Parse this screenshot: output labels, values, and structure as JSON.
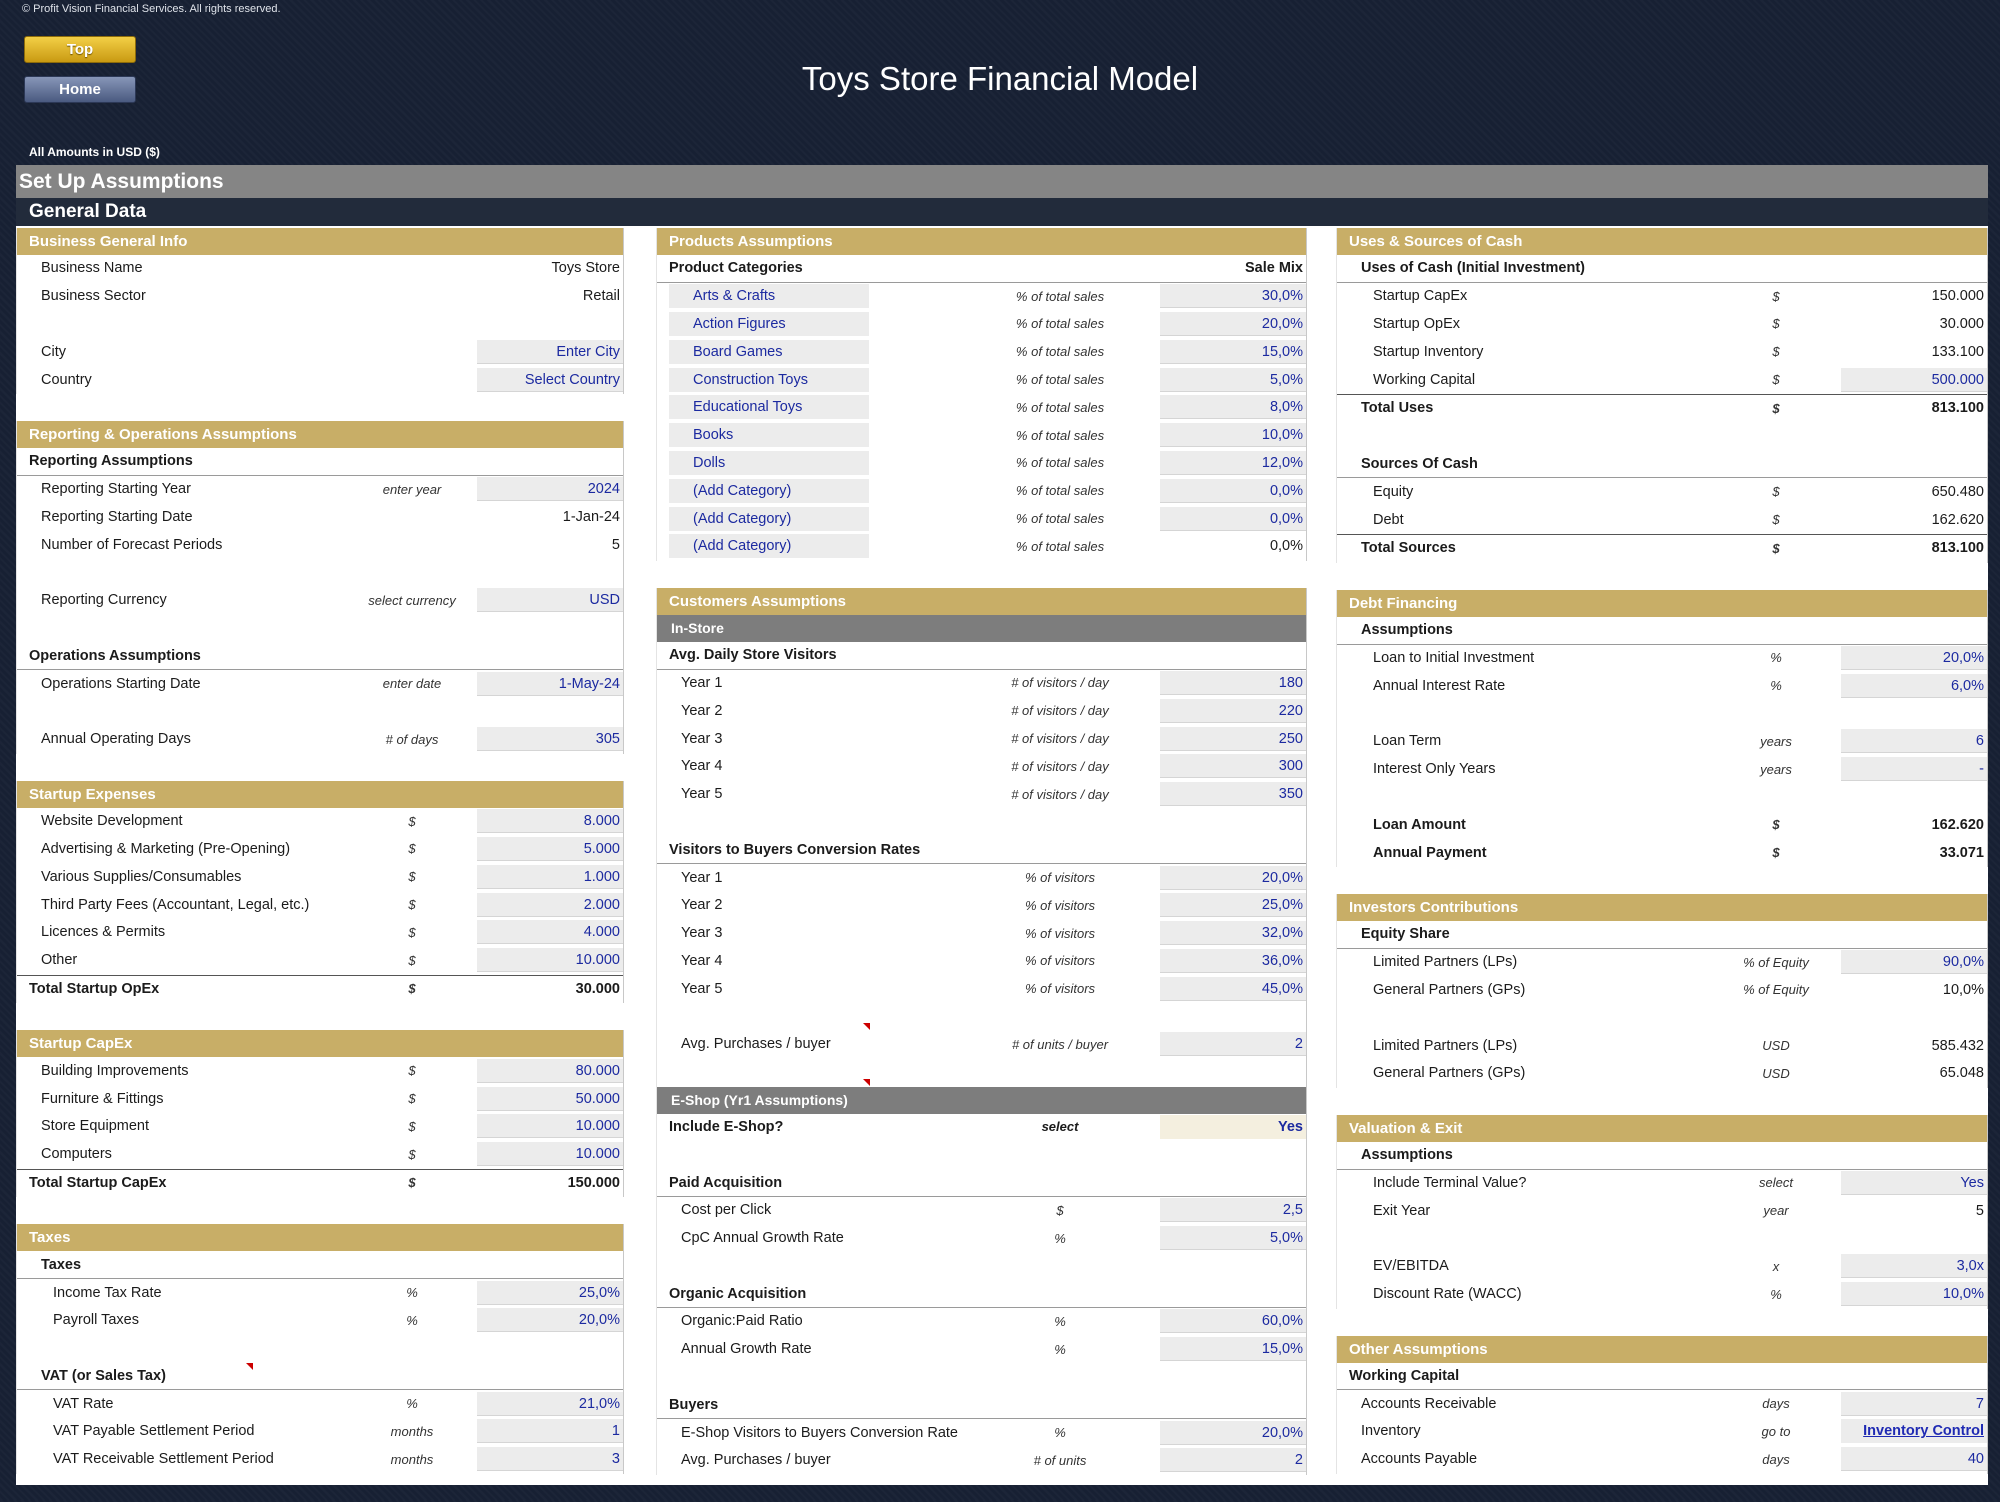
{
  "copyright": "© Profit Vision Financial Services. All rights reserved.",
  "nav": {
    "top_label": "Top",
    "home_label": "Home"
  },
  "title": "Toys Store Financial Model",
  "amounts_note": "All Amounts in  USD ($)",
  "setup_header": "Set Up Assumptions",
  "general_header": "General Data",
  "business_info": {
    "header": "Business General Info",
    "rows": [
      {
        "label": "Business Name",
        "value": "Toys Store"
      },
      {
        "label": "Business Sector",
        "value": "Retail"
      },
      {
        "label": "City",
        "value": "Enter City"
      },
      {
        "label": "Country",
        "value": "Select Country"
      }
    ]
  },
  "reporting": {
    "header": "Reporting & Operations Assumptions",
    "reporting_title": "Reporting Assumptions",
    "rows": [
      {
        "label": "Reporting Starting Year",
        "unit": "enter year",
        "value": "2024"
      },
      {
        "label": "Reporting Starting Date",
        "unit": "",
        "value": "1-Jan-24"
      },
      {
        "label": "Number of Forecast Periods",
        "unit": "",
        "value": "5"
      },
      {
        "label": "Reporting Currency",
        "unit": "select currency",
        "value": "USD"
      }
    ],
    "operations_title": "Operations Assumptions",
    "ops_rows": [
      {
        "label": "Operations Starting Date",
        "unit": "enter date",
        "value": "1-May-24"
      },
      {
        "label": "Annual Operating Days",
        "unit": "# of days",
        "value": "305"
      }
    ]
  },
  "startup_expenses": {
    "header": "Startup Expenses",
    "rows": [
      {
        "label": "Website Development",
        "unit": "$",
        "value": "8.000"
      },
      {
        "label": "Advertising & Marketing (Pre-Opening)",
        "unit": "$",
        "value": "5.000"
      },
      {
        "label": "Various Supplies/Consumables",
        "unit": "$",
        "value": "1.000"
      },
      {
        "label": "Third Party Fees (Accountant, Legal, etc.)",
        "unit": "$",
        "value": "2.000"
      },
      {
        "label": "Licences & Permits",
        "unit": "$",
        "value": "4.000"
      },
      {
        "label": "Other",
        "unit": "$",
        "value": "10.000"
      }
    ],
    "total": {
      "label": "Total Startup OpEx",
      "unit": "$",
      "value": "30.000"
    }
  },
  "startup_capex": {
    "header": "Startup CapEx",
    "rows": [
      {
        "label": "Building Improvements",
        "unit": "$",
        "value": "80.000"
      },
      {
        "label": "Furniture & Fittings",
        "unit": "$",
        "value": "50.000"
      },
      {
        "label": "Store Equipment",
        "unit": "$",
        "value": "10.000"
      },
      {
        "label": "Computers",
        "unit": "$",
        "value": "10.000"
      }
    ],
    "total": {
      "label": "Total Startup CapEx",
      "unit": "$",
      "value": "150.000"
    }
  },
  "taxes": {
    "header": "Taxes",
    "taxes_title": "Taxes",
    "rows": [
      {
        "label": "Income Tax Rate",
        "unit": "%",
        "value": "25,0%"
      },
      {
        "label": "Payroll Taxes",
        "unit": "%",
        "value": "20,0%"
      }
    ],
    "vat_title": "VAT (or Sales Tax)",
    "vat_rows": [
      {
        "label": "VAT Rate",
        "unit": "%",
        "value": "21,0%"
      },
      {
        "label": "VAT Payable Settlement Period",
        "unit": "months",
        "value": "1"
      },
      {
        "label": "VAT Receivable Settlement Period",
        "unit": "months",
        "value": "3"
      }
    ]
  },
  "products": {
    "header": "Products Assumptions",
    "col_left": "Product Categories",
    "col_right": "Sale Mix",
    "rows": [
      {
        "label": "Arts & Crafts",
        "unit": "% of total sales",
        "value": "30,0%"
      },
      {
        "label": "Action Figures",
        "unit": "% of total sales",
        "value": "20,0%"
      },
      {
        "label": "Board Games",
        "unit": "% of total sales",
        "value": "15,0%"
      },
      {
        "label": "Construction Toys",
        "unit": "% of total sales",
        "value": "5,0%"
      },
      {
        "label": "Educational Toys",
        "unit": "% of total sales",
        "value": "8,0%"
      },
      {
        "label": "Books",
        "unit": "% of total sales",
        "value": "10,0%"
      },
      {
        "label": "Dolls",
        "unit": "% of total sales",
        "value": "12,0%"
      },
      {
        "label": "(Add Category)",
        "unit": "% of total sales",
        "value": "0,0%"
      },
      {
        "label": "(Add Category)",
        "unit": "% of total sales",
        "value": "0,0%"
      },
      {
        "label": "(Add Category)",
        "unit": "% of total sales",
        "value": "0,0%"
      }
    ]
  },
  "customers": {
    "header": "Customers Assumptions",
    "instore": "In-Store",
    "visitors_title": "Avg. Daily Store Visitors",
    "visitors": [
      {
        "label": "Year 1",
        "unit": "# of visitors / day",
        "value": "180"
      },
      {
        "label": "Year 2",
        "unit": "# of visitors / day",
        "value": "220"
      },
      {
        "label": "Year 3",
        "unit": "# of visitors / day",
        "value": "250"
      },
      {
        "label": "Year 4",
        "unit": "# of visitors / day",
        "value": "300"
      },
      {
        "label": "Year 5",
        "unit": "# of visitors / day",
        "value": "350"
      }
    ],
    "conversion_title": "Visitors to Buyers Conversion Rates",
    "conversion": [
      {
        "label": "Year 1",
        "unit": "% of visitors",
        "value": "20,0%"
      },
      {
        "label": "Year 2",
        "unit": "% of visitors",
        "value": "25,0%"
      },
      {
        "label": "Year 3",
        "unit": "% of visitors",
        "value": "32,0%"
      },
      {
        "label": "Year 4",
        "unit": "% of visitors",
        "value": "36,0%"
      },
      {
        "label": "Year 5",
        "unit": "% of visitors",
        "value": "45,0%"
      }
    ],
    "avg_purchases": {
      "label": "Avg. Purchases / buyer",
      "unit": "# of units / buyer",
      "value": "2"
    },
    "eshop": "E-Shop (Yr1 Assumptions)",
    "include_eshop": {
      "label": "Include E-Shop?",
      "unit": "select",
      "value": "Yes"
    },
    "paid_title": "Paid Acquisition",
    "paid": [
      {
        "label": "Cost per Click",
        "unit": "$",
        "value": "2,5"
      },
      {
        "label": "CpC Annual Growth Rate",
        "unit": "%",
        "value": "5,0%"
      }
    ],
    "organic_title": "Organic Acquisition",
    "organic": [
      {
        "label": "Organic:Paid Ratio",
        "unit": "%",
        "value": "60,0%"
      },
      {
        "label": "Annual Growth Rate",
        "unit": "%",
        "value": "15,0%"
      }
    ],
    "buyers_title": "Buyers",
    "buyers": [
      {
        "label": "E-Shop Visitors to Buyers Conversion Rate",
        "unit": "%",
        "value": "20,0%"
      },
      {
        "label": "Avg. Purchases / buyer",
        "unit": "# of units",
        "value": "2"
      }
    ]
  },
  "uses_sources": {
    "header": "Uses & Sources of Cash",
    "uses_title": "Uses of Cash (Initial Investment)",
    "uses": [
      {
        "label": "Startup CapEx",
        "unit": "$",
        "value": "150.000"
      },
      {
        "label": "Startup OpEx",
        "unit": "$",
        "value": "30.000"
      },
      {
        "label": "Startup Inventory",
        "unit": "$",
        "value": "133.100"
      },
      {
        "label": "Working Capital",
        "unit": "$",
        "value": "500.000"
      }
    ],
    "total_uses": {
      "label": "Total Uses",
      "unit": "$",
      "value": "813.100"
    },
    "sources_title": "Sources Of Cash",
    "sources": [
      {
        "label": "Equity",
        "unit": "$",
        "value": "650.480"
      },
      {
        "label": "Debt",
        "unit": "$",
        "value": "162.620"
      }
    ],
    "total_sources": {
      "label": "Total Sources",
      "unit": "$",
      "value": "813.100"
    }
  },
  "debt": {
    "header": "Debt Financing",
    "title": "Assumptions",
    "rows": [
      {
        "label": "Loan to Initial Investment",
        "unit": "%",
        "value": "20,0%"
      },
      {
        "label": "Annual Interest Rate",
        "unit": "%",
        "value": "6,0%"
      }
    ],
    "rows2": [
      {
        "label": "Loan Term",
        "unit": "years",
        "value": "6"
      },
      {
        "label": "Interest Only Years",
        "unit": "years",
        "value": "-"
      }
    ],
    "loan_amount": {
      "label": "Loan Amount",
      "unit": "$",
      "value": "162.620"
    },
    "annual_payment": {
      "label": "Annual Payment",
      "unit": "$",
      "value": "33.071"
    }
  },
  "investors": {
    "header": "Investors Contributions",
    "title": "Equity Share",
    "rows": [
      {
        "label": "Limited Partners (LPs)",
        "unit": "% of Equity",
        "value": "90,0%"
      },
      {
        "label": "General Partners (GPs)",
        "unit": "% of Equity",
        "value": "10,0%"
      }
    ],
    "rows2": [
      {
        "label": "Limited Partners (LPs)",
        "unit": "USD",
        "value": "585.432"
      },
      {
        "label": "General Partners (GPs)",
        "unit": "USD",
        "value": "65.048"
      }
    ]
  },
  "valuation": {
    "header": "Valuation & Exit",
    "title": "Assumptions",
    "rows": [
      {
        "label": "Include Terminal Value?",
        "unit": "select",
        "value": "Yes"
      },
      {
        "label": "Exit Year",
        "unit": "year",
        "value": "5"
      }
    ],
    "rows2": [
      {
        "label": "EV/EBITDA",
        "unit": "x",
        "value": "3,0x"
      },
      {
        "label": "Discount Rate (WACC)",
        "unit": "%",
        "value": "10,0%"
      }
    ]
  },
  "other": {
    "header": "Other Assumptions",
    "title": "Working Capital",
    "rows": [
      {
        "label": "Accounts Receivable",
        "unit": "days",
        "value": "7"
      },
      {
        "label": "Inventory",
        "unit": "go to",
        "value": "Inventory Control"
      },
      {
        "label": "Accounts Payable",
        "unit": "days",
        "value": "40"
      }
    ]
  }
}
